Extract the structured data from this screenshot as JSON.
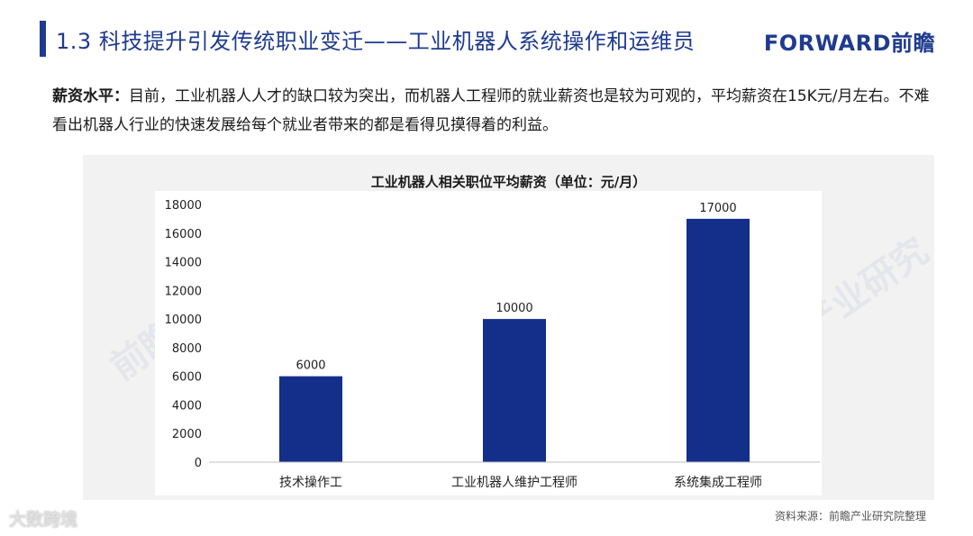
{
  "header": {
    "title": "1.3 科技提升引发传统职业变迁——工业机器人系统操作和运维员",
    "brand": "FORWARD前瞻"
  },
  "intro": {
    "label": "薪资水平：",
    "text": "目前，工业机器人人才的缺口较为突出，而机器人工程师的就业薪资也是较为可观的，平均薪资在15K元/月左右。不难看出机器人行业的快速发展给每个就业者带来的都是看得见摸得着的利益。"
  },
  "watermark": "前瞻产业研究院",
  "platform_logo": "大数跨境",
  "source": "资料来源：前瞻产业研究院整理",
  "colors": {
    "bar": "#132f8a",
    "accent": "#1f3b8f"
  },
  "chart_data": {
    "type": "bar",
    "title": "工业机器人相关职位平均薪资（单位：元/月）",
    "categories": [
      "技术操作工",
      "工业机器人维护工程师",
      "系统集成工程师"
    ],
    "values": [
      6000,
      10000,
      17000
    ],
    "data_labels": [
      "6000",
      "10000",
      "17000"
    ],
    "ylim": [
      0,
      18000
    ],
    "y_ticks": [
      0,
      2000,
      4000,
      6000,
      8000,
      10000,
      12000,
      14000,
      16000,
      18000
    ],
    "xlabel": "",
    "ylabel": "",
    "grid": false,
    "legend": "none"
  }
}
